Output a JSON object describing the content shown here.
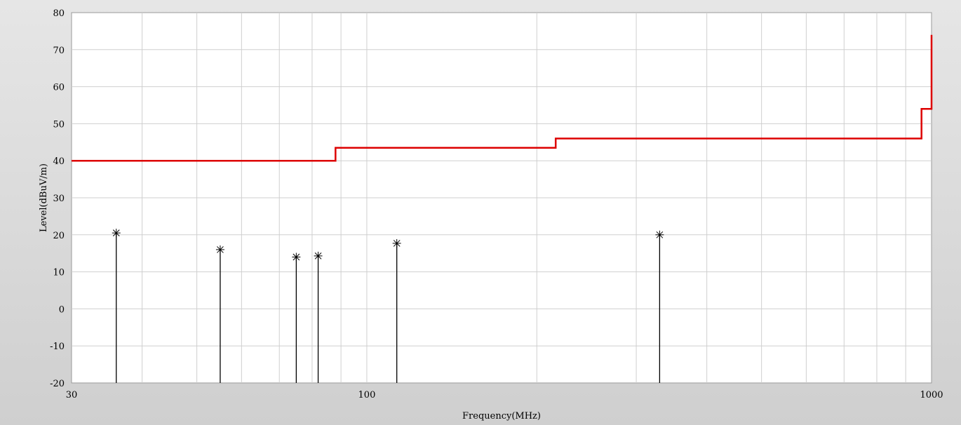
{
  "chart_data": {
    "type": "line",
    "title": "",
    "xlabel": "Frequency(MHz)",
    "ylabel": "Level(dBuV/m)",
    "x_scale": "log",
    "xlim": [
      30,
      1000
    ],
    "ylim": [
      -20,
      80
    ],
    "x_tick_labels": [
      "30",
      "100",
      "1000"
    ],
    "y_ticks": [
      80,
      70,
      60,
      50,
      40,
      30,
      20,
      10,
      0,
      -10,
      -20
    ],
    "grid": true,
    "series": [
      {
        "kind": "limit-line",
        "color": "#dd0000",
        "points": [
          [
            30,
            40
          ],
          [
            88,
            40
          ],
          [
            88,
            43.5
          ],
          [
            216,
            43.5
          ],
          [
            216,
            46
          ],
          [
            960,
            46
          ],
          [
            960,
            54
          ],
          [
            1000,
            54
          ],
          [
            1000,
            74
          ]
        ]
      },
      {
        "kind": "peak-markers",
        "color": "#000000",
        "points": [
          [
            36,
            20.5
          ],
          [
            55,
            16
          ],
          [
            75,
            14
          ],
          [
            82,
            14.3
          ],
          [
            113,
            17.7
          ],
          [
            330,
            20
          ]
        ]
      }
    ]
  }
}
